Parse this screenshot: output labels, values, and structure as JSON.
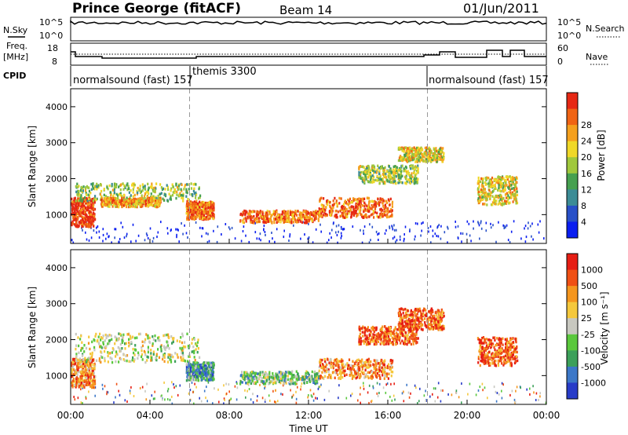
{
  "header": {
    "station": "Prince George (fitACF)",
    "beam": "Beam 14",
    "date": "01/Jun/2011"
  },
  "top_panels": {
    "nsky_label": "N.Sky",
    "nsearch_label": "N.Search",
    "nsky_ticks": [
      "10^5",
      "10^0"
    ],
    "nsearch_ticks": [
      "10^5",
      "10^0"
    ],
    "freq_label": "Freq.",
    "freq_unit": "[MHz]",
    "freq_ticks": [
      "18",
      "8"
    ],
    "nave_label": "Nave",
    "nave_ticks": [
      "60",
      "0"
    ],
    "cpid_label": "CPID",
    "cpid_segments": [
      {
        "label": "normalsound (fast) 157",
        "start": "00:00"
      },
      {
        "label": "themis 3300",
        "start": "06:00"
      },
      {
        "label": "normalsound (fast) 157",
        "start": "18:00"
      }
    ]
  },
  "chart_data": [
    {
      "type": "heatmap",
      "title": "",
      "ylabel": "Slant Range [km]",
      "xlabel": "",
      "xlim": [
        0,
        24
      ],
      "ylim": [
        200,
        4500
      ],
      "yticks": [
        "1000",
        "2000",
        "3000",
        "4000"
      ],
      "colorbar": {
        "label": "Power [dB]",
        "ticks": [
          "4",
          "8",
          "12",
          "16",
          "20",
          "24",
          "28"
        ],
        "colors": [
          "#0a1ef0",
          "#2850c8",
          "#3c8c96",
          "#46a050",
          "#a0c83c",
          "#f0d828",
          "#f5a01e",
          "#f06414",
          "#e62814"
        ]
      },
      "scatter_regions": [
        {
          "t": [
            0.0,
            1.2
          ],
          "r": [
            700,
            1500
          ],
          "level": 8
        },
        {
          "t": [
            0.2,
            6.5
          ],
          "r": [
            1400,
            1900
          ],
          "level": 4
        },
        {
          "t": [
            1.5,
            4.5
          ],
          "r": [
            1250,
            1500
          ],
          "level": 6
        },
        {
          "t": [
            5.8,
            7.2
          ],
          "r": [
            900,
            1400
          ],
          "level": 7
        },
        {
          "t": [
            8.5,
            12.5
          ],
          "r": [
            800,
            1150
          ],
          "level": 7
        },
        {
          "t": [
            12.5,
            16.2
          ],
          "r": [
            950,
            1500
          ],
          "level": 7
        },
        {
          "t": [
            14.5,
            17.5
          ],
          "r": [
            1900,
            2400
          ],
          "level": 4
        },
        {
          "t": [
            16.5,
            18.8
          ],
          "r": [
            2500,
            2900
          ],
          "level": 5
        },
        {
          "t": [
            20.5,
            22.5
          ],
          "r": [
            1300,
            2100
          ],
          "level": 5
        }
      ]
    },
    {
      "type": "heatmap",
      "title": "",
      "ylabel": "Slant Range [km]",
      "xlabel": "Time UT",
      "xlim": [
        0,
        24
      ],
      "ylim": [
        200,
        4500
      ],
      "xticks": [
        "00:00",
        "04:00",
        "08:00",
        "12:00",
        "16:00",
        "20:00",
        "00:00"
      ],
      "yticks": [
        "1000",
        "2000",
        "3000",
        "4000"
      ],
      "colorbar": {
        "label": "Velocity [m s⁻¹]",
        "ticks": [
          "1000",
          "500",
          "100",
          "25",
          "-25",
          "-100",
          "-500",
          "-1000"
        ],
        "colors": [
          "#283cc8",
          "#3c78c8",
          "#3ca05a",
          "#5ac83c",
          "#c8c8c0",
          "#f5c83c",
          "#f5961e",
          "#f05014",
          "#e61e14"
        ]
      },
      "scatter_regions": [
        {
          "t": [
            0.0,
            1.2
          ],
          "r": [
            700,
            1500
          ],
          "level": 6
        },
        {
          "t": [
            0.2,
            6.5
          ],
          "r": [
            1400,
            2200
          ],
          "level": 4
        },
        {
          "t": [
            5.8,
            7.2
          ],
          "r": [
            900,
            1400
          ],
          "level": 2
        },
        {
          "t": [
            8.5,
            12.5
          ],
          "r": [
            800,
            1150
          ],
          "level": 3
        },
        {
          "t": [
            12.5,
            16.2
          ],
          "r": [
            950,
            1500
          ],
          "level": 6
        },
        {
          "t": [
            14.5,
            17.5
          ],
          "r": [
            1900,
            2400
          ],
          "level": 7
        },
        {
          "t": [
            16.5,
            18.8
          ],
          "r": [
            2300,
            2900
          ],
          "level": 7
        },
        {
          "t": [
            20.5,
            22.5
          ],
          "r": [
            1300,
            2100
          ],
          "level": 7
        }
      ]
    }
  ]
}
